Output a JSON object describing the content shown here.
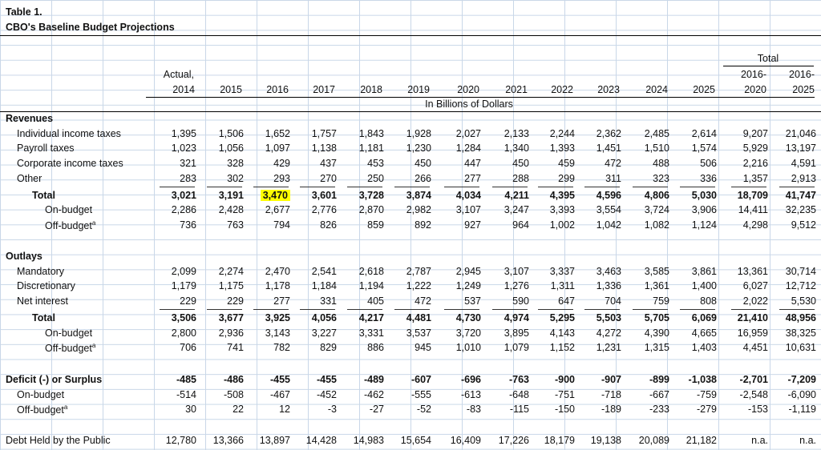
{
  "title_line1": "Table 1.",
  "title_line2": "CBO's Baseline Budget Projections",
  "header": {
    "total_label": "Total",
    "actual_label": "Actual,",
    "years": [
      "2014",
      "2015",
      "2016",
      "2017",
      "2018",
      "2019",
      "2020",
      "2021",
      "2022",
      "2023",
      "2024",
      "2025"
    ],
    "range_top": [
      "2016-",
      "2016-"
    ],
    "range_bottom": [
      "2020",
      "2025"
    ],
    "units": "In Billions of Dollars"
  },
  "sections": [
    {
      "name": "Revenues",
      "rows": [
        {
          "label": "Individual income taxes",
          "level": 1,
          "values": [
            "1,395",
            "1,506",
            "1,652",
            "1,757",
            "1,843",
            "1,928",
            "2,027",
            "2,133",
            "2,244",
            "2,362",
            "2,485",
            "2,614",
            "9,207",
            "21,046"
          ]
        },
        {
          "label": "Payroll taxes",
          "level": 1,
          "values": [
            "1,023",
            "1,056",
            "1,097",
            "1,138",
            "1,181",
            "1,230",
            "1,284",
            "1,340",
            "1,393",
            "1,451",
            "1,510",
            "1,574",
            "5,929",
            "13,197"
          ]
        },
        {
          "label": "Corporate income taxes",
          "level": 1,
          "values": [
            "321",
            "328",
            "429",
            "437",
            "453",
            "450",
            "447",
            "450",
            "459",
            "472",
            "488",
            "506",
            "2,216",
            "4,591"
          ]
        },
        {
          "label": "Other",
          "level": 1,
          "values": [
            "283",
            "302",
            "293",
            "270",
            "250",
            "266",
            "277",
            "288",
            "299",
            "311",
            "323",
            "336",
            "1,357",
            "2,913"
          ]
        },
        {
          "label": "Total",
          "level": "total",
          "values": [
            "3,021",
            "3,191",
            "3,470",
            "3,601",
            "3,728",
            "3,874",
            "4,034",
            "4,211",
            "4,395",
            "4,596",
            "4,806",
            "5,030",
            "18,709",
            "41,747"
          ],
          "highlight_col": 2
        },
        {
          "label": "On-budget",
          "level": 2,
          "values": [
            "2,286",
            "2,428",
            "2,677",
            "2,776",
            "2,870",
            "2,982",
            "3,107",
            "3,247",
            "3,393",
            "3,554",
            "3,724",
            "3,906",
            "14,411",
            "32,235"
          ]
        },
        {
          "label": "Off-budget",
          "sup": "a",
          "level": 2,
          "values": [
            "736",
            "763",
            "794",
            "826",
            "859",
            "892",
            "927",
            "964",
            "1,002",
            "1,042",
            "1,082",
            "1,124",
            "4,298",
            "9,512"
          ]
        }
      ]
    },
    {
      "name": "Outlays",
      "rows": [
        {
          "label": "Mandatory",
          "level": 1,
          "values": [
            "2,099",
            "2,274",
            "2,470",
            "2,541",
            "2,618",
            "2,787",
            "2,945",
            "3,107",
            "3,337",
            "3,463",
            "3,585",
            "3,861",
            "13,361",
            "30,714"
          ]
        },
        {
          "label": "Discretionary",
          "level": 1,
          "values": [
            "1,179",
            "1,175",
            "1,178",
            "1,184",
            "1,194",
            "1,222",
            "1,249",
            "1,276",
            "1,311",
            "1,336",
            "1,361",
            "1,400",
            "6,027",
            "12,712"
          ]
        },
        {
          "label": "Net interest",
          "level": 1,
          "values": [
            "229",
            "229",
            "277",
            "331",
            "405",
            "472",
            "537",
            "590",
            "647",
            "704",
            "759",
            "808",
            "2,022",
            "5,530"
          ]
        },
        {
          "label": "Total",
          "level": "total",
          "values": [
            "3,506",
            "3,677",
            "3,925",
            "4,056",
            "4,217",
            "4,481",
            "4,730",
            "4,974",
            "5,295",
            "5,503",
            "5,705",
            "6,069",
            "21,410",
            "48,956"
          ]
        },
        {
          "label": "On-budget",
          "level": 2,
          "values": [
            "2,800",
            "2,936",
            "3,143",
            "3,227",
            "3,331",
            "3,537",
            "3,720",
            "3,895",
            "4,143",
            "4,272",
            "4,390",
            "4,665",
            "16,959",
            "38,325"
          ]
        },
        {
          "label": "Off-budget",
          "sup": "a",
          "level": 2,
          "values": [
            "706",
            "741",
            "782",
            "829",
            "886",
            "945",
            "1,010",
            "1,079",
            "1,152",
            "1,231",
            "1,315",
            "1,403",
            "4,451",
            "10,631"
          ]
        }
      ]
    },
    {
      "name": "Deficit (-) or Surplus",
      "rows": [
        {
          "label": "On-budget",
          "level": 1,
          "values": [
            "-514",
            "-508",
            "-467",
            "-452",
            "-462",
            "-555",
            "-613",
            "-648",
            "-751",
            "-718",
            "-667",
            "-759",
            "-2,548",
            "-6,090"
          ]
        },
        {
          "label": "Off-budget",
          "sup": "a",
          "level": 1,
          "values": [
            "30",
            "22",
            "12",
            "-3",
            "-27",
            "-52",
            "-83",
            "-115",
            "-150",
            "-189",
            "-233",
            "-279",
            "-153",
            "-1,119"
          ]
        }
      ],
      "header_values": [
        "-485",
        "-486",
        "-455",
        "-455",
        "-489",
        "-607",
        "-696",
        "-763",
        "-900",
        "-907",
        "-899",
        "-1,038",
        "-2,701",
        "-7,209"
      ]
    },
    {
      "name": "Debt Held by the Public",
      "values": [
        "12,780",
        "13,366",
        "13,897",
        "14,428",
        "14,983",
        "15,654",
        "16,409",
        "17,226",
        "18,179",
        "19,138",
        "20,089",
        "21,182",
        "n.a.",
        "n.a."
      ]
    }
  ]
}
